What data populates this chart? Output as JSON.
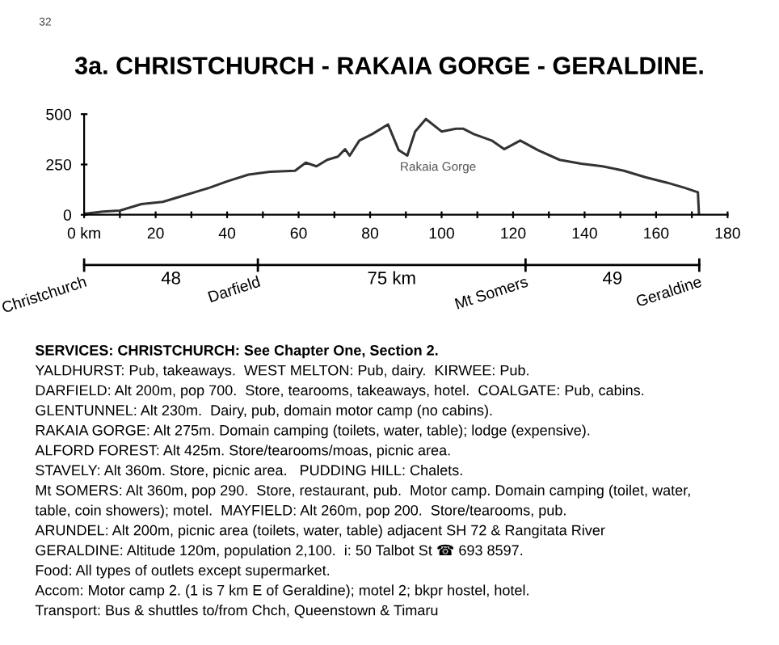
{
  "chart_data": {
    "type": "line",
    "title": "3a. CHRISTCHURCH - RAKAIA GORGE - GERALDINE.",
    "x": [
      0,
      5.3,
      10,
      16,
      22,
      28,
      35,
      40,
      46,
      52,
      59,
      62,
      65,
      68,
      71,
      73,
      74.3,
      77,
      80.6,
      85,
      88,
      90.4,
      92.6,
      95.6,
      100,
      104,
      106,
      109,
      114,
      117.5,
      122,
      127,
      133,
      139,
      145,
      151,
      157,
      163,
      168,
      171.7,
      172
    ],
    "series": [
      {
        "color": "#333333",
        "values": [
          5,
          16,
          21,
          53,
          64,
          96,
          134,
          166,
          200,
          214,
          219,
          259,
          241,
          273,
          289,
          326,
          294,
          369,
          401,
          449,
          321,
          294,
          414,
          476,
          414,
          428,
          428,
          401,
          369,
          326,
          369,
          321,
          273,
          254,
          241,
          219,
          187,
          160,
          134,
          112,
          0
        ]
      }
    ],
    "xlim": [
      0,
      180
    ],
    "ylim": [
      0,
      500
    ],
    "xticks": [
      {
        "value": 0,
        "label": "0 km"
      },
      {
        "value": 10,
        "label": null
      },
      20,
      {
        "value": 30,
        "label": null
      },
      40,
      {
        "value": 50,
        "label": null
      },
      60,
      {
        "value": 70,
        "label": null
      },
      80,
      {
        "value": 90,
        "label": null
      },
      100,
      {
        "value": 110,
        "label": null
      },
      120,
      {
        "value": 130,
        "label": null
      },
      140,
      {
        "value": 150,
        "label": null
      },
      160,
      {
        "value": 170,
        "label": null
      },
      180
    ],
    "yticks": [
      0,
      250,
      500
    ],
    "grid": false,
    "legend": false,
    "marker": "none",
    "line_style": "solid",
    "annotations": [
      "32",
      "Rakaia Gorge",
      "Christchurch",
      "48",
      "Darfield",
      "75 km",
      "Mt Somers",
      "49",
      "Geraldine",
      "SERVICES: CHRISTCHURCH: See Chapter One, Section 2.",
      "YALDHURST: Pub, takeaways.  WEST MELTON: Pub, dairy.  KIRWEE: Pub.",
      "DARFIELD: Alt 200m, pop 700.  Store, tearooms, takeaways, hotel.  COALGATE: Pub, cabins.",
      "GLENTUNNEL: Alt 230m.  Dairy, pub, domain motor camp (no cabins).",
      "RAKAIA GORGE: Alt 275m. Domain camping (toilets, water, table); lodge (expensive).",
      "ALFORD FOREST: Alt 425m. Store/tearooms/moas, picnic area.",
      "STAVELY: Alt 360m. Store, picnic area.   PUDDING HILL: Chalets.",
      "Mt SOMERS: Alt 360m, pop 290.  Store, restaurant, pub.  Motor camp. Domain camping (toilet, water,",
      "table, coin showers); motel.  MAYFIELD: Alt 260m, pop 200.  Store/tearooms, pub.",
      "ARUNDEL: Alt 200m, picnic area (toilets, water, table) adjacent SH 72 & Rangitata River",
      "GERALDINE: Altitude 120m, population 2,100.  i: 50 Talbot St ☎ 693 8597.",
      "Food: All types of outlets except supermarket.",
      "Accom: Motor camp 2. (1 is 7 km E of Geraldine); motel 2; bkpr hostel, hotel.",
      "Transport: Bus & shuttles to/from Chch, Queenstown & Timaru"
    ]
  }
}
